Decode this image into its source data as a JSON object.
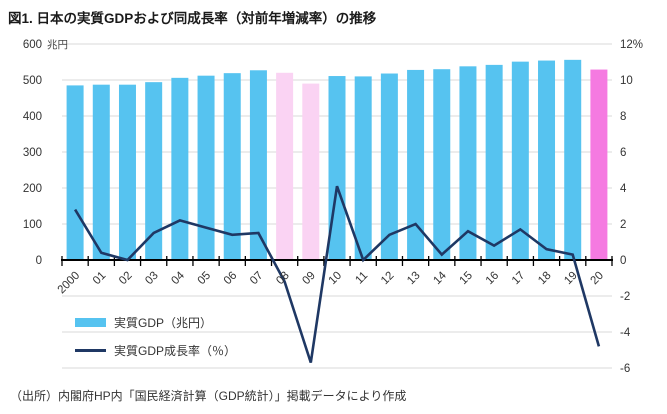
{
  "title": "図1. 日本の実質GDPおよび同成長率（対前年増減率）の推移",
  "source_note": "（出所）内閣府HP内「国民経済計算（GDP統計）」掲載データにより作成",
  "chart_data": {
    "type": "bar+line combo",
    "categories": [
      "2000",
      "01",
      "02",
      "03",
      "04",
      "05",
      "06",
      "07",
      "08",
      "09",
      "10",
      "11",
      "12",
      "13",
      "14",
      "15",
      "16",
      "17",
      "18",
      "19",
      "20"
    ],
    "series": [
      {
        "name": "実質GDP（兆円）",
        "type": "bar",
        "axis": "left",
        "color": "#56C3F0",
        "highlight_colors": {
          "08": "#FAD3F3",
          "09": "#FAD3F3",
          "20": "#F57AE1"
        },
        "values": [
          485,
          487,
          487,
          494,
          506,
          512,
          519,
          527,
          520,
          490,
          511,
          510,
          518,
          528,
          530,
          538,
          542,
          551,
          554,
          556,
          529
        ]
      },
      {
        "name": "実質GDP成長率（％）",
        "type": "line",
        "axis": "right",
        "color": "#1F3864",
        "values": [
          2.8,
          0.4,
          0.0,
          1.5,
          2.2,
          1.8,
          1.4,
          1.5,
          -1.2,
          -5.7,
          4.1,
          0.0,
          1.4,
          2.0,
          0.3,
          1.6,
          0.8,
          1.7,
          0.6,
          0.3,
          -4.8
        ]
      }
    ],
    "left_axis": {
      "unit": "兆円",
      "ticks": [
        600,
        500,
        400,
        300,
        200,
        100,
        0
      ],
      "range": [
        0,
        600
      ]
    },
    "right_axis": {
      "ticks": [
        "12%",
        "10",
        "8",
        "6",
        "4",
        "2",
        "0",
        "-2",
        "-4",
        "-6"
      ],
      "range": [
        -6,
        12
      ]
    },
    "legend": [
      "実質GDP（兆円）",
      "実質GDP成長率（％）"
    ],
    "colors": {
      "grid": "#D9D9D9",
      "axis": "#000000",
      "tick_label": "#333333"
    },
    "layout_hints": {
      "grid": "horizontal",
      "legend_position": "bottom-left inside plot",
      "x_labels_rotated": true
    }
  }
}
